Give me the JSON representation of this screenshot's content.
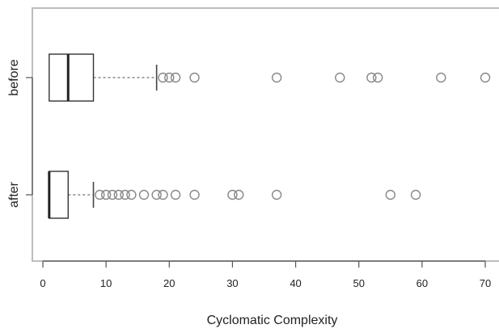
{
  "chart_data": {
    "type": "boxplot",
    "orientation": "horizontal",
    "title": "",
    "xlabel": "Cyclomatic Complexity",
    "ylabel": "",
    "xlim": [
      -2,
      72
    ],
    "x_ticks": [
      0,
      10,
      20,
      30,
      40,
      50,
      60,
      70
    ],
    "x_tick_labels": [
      "0",
      "10",
      "20",
      "30",
      "40",
      "50",
      "60",
      "70"
    ],
    "grid": false,
    "legend": "none",
    "colors": {
      "box_stroke": "#333333",
      "median_stroke": "#222222",
      "whisker_stroke": "#888888",
      "outlier_stroke": "#888888",
      "axis_stroke": "#555555",
      "frame_stroke": "#bdbdbd"
    },
    "series": [
      {
        "name": "before",
        "min": 1,
        "q1": 1,
        "median": 4,
        "q3": 8,
        "max": 18,
        "outliers": [
          19,
          20,
          21,
          24,
          37,
          47,
          52,
          53,
          63,
          70
        ]
      },
      {
        "name": "after",
        "min": 1,
        "q1": 1,
        "median": 1,
        "q3": 4,
        "max": 8,
        "outliers": [
          9,
          10,
          11,
          12,
          13,
          14,
          16,
          18,
          19,
          21,
          24,
          30,
          31,
          37,
          55,
          59
        ]
      }
    ]
  }
}
